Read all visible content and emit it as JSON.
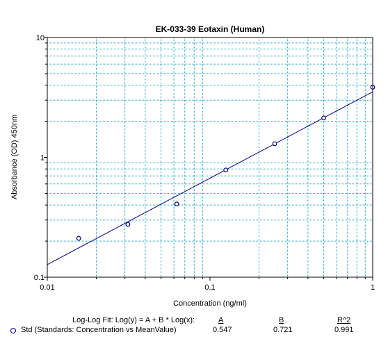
{
  "chart_data": {
    "type": "scatter",
    "title": "EK-033-39 Eotaxin (Human)",
    "xlabel": "Concentration (ng/ml)",
    "ylabel": "Absorbance (OD) 450nm",
    "x_scale": "log",
    "y_scale": "log",
    "xlim": [
      0.01,
      1
    ],
    "ylim": [
      0.1,
      10
    ],
    "x_ticks": [
      "0.01",
      "0.1",
      "1"
    ],
    "y_ticks": [
      "0.1",
      "1",
      "10"
    ],
    "grid": true,
    "series": [
      {
        "name": "Std (Standards: Concentration vs MeanValue)",
        "marker": "circle",
        "points": [
          {
            "x": 0.0156,
            "y": 0.211
          },
          {
            "x": 0.0313,
            "y": 0.276
          },
          {
            "x": 0.0625,
            "y": 0.408
          },
          {
            "x": 0.125,
            "y": 0.784
          },
          {
            "x": 0.25,
            "y": 1.3
          },
          {
            "x": 0.5,
            "y": 2.13
          },
          {
            "x": 1.0,
            "y": 3.85
          }
        ]
      }
    ],
    "fit": {
      "type": "log-log",
      "A": 0.547,
      "B": 0.721,
      "R2": 0.991
    }
  },
  "legend": {
    "fit_label": "Log-Log Fit:  Log(y) = A + B * Log(x):",
    "col_a": "A",
    "col_b": "B",
    "col_r2": "R^2",
    "series_label": "Std (Standards: Concentration vs MeanValue)",
    "val_a": "0.547",
    "val_b": "0.721",
    "val_r2": "0.991"
  },
  "colors": {
    "grid": "#1aa3c7",
    "series": "#000080",
    "axis": "#000000"
  }
}
